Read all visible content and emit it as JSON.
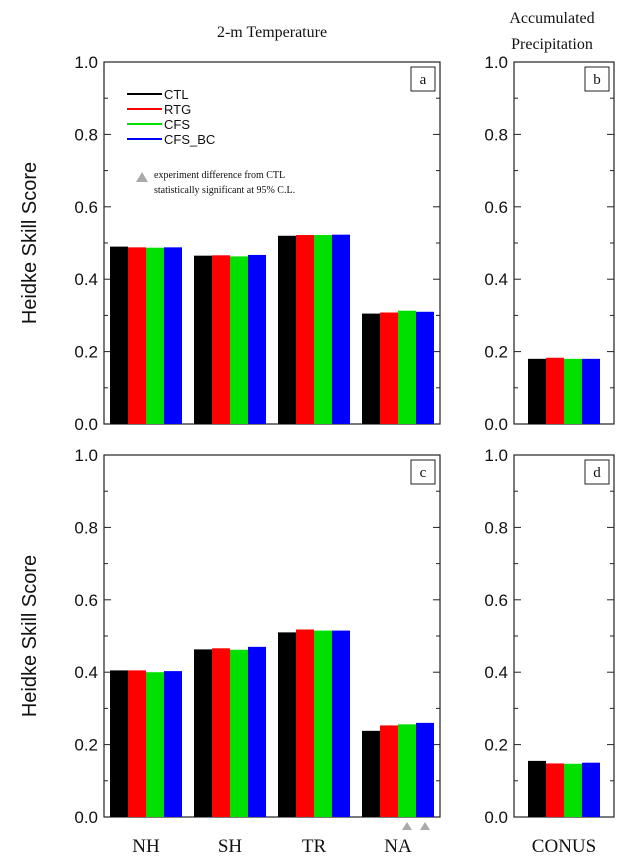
{
  "figure": {
    "col_title_left": "2-m Temperature",
    "col_title_right_line1": "Accumulated",
    "col_title_right_line2": "Precipitation",
    "legend": {
      "entries": [
        {
          "name": "CTL",
          "color": "#000000"
        },
        {
          "name": "RTG",
          "color": "#ff0000"
        },
        {
          "name": "CFS",
          "color": "#00e000"
        },
        {
          "name": "CFS_BC",
          "color": "#0000ff"
        }
      ],
      "note_line1": "experiment difference from CTL",
      "note_line2": "statistically significant at 95% C.L.",
      "marker_color": "#aaaaaa"
    }
  },
  "chart_data": [
    {
      "panel": "a",
      "type": "bar",
      "ylabel": "Heidke Skill Score",
      "ylim": [
        0,
        1
      ],
      "yticks": [
        "0.0",
        "0.2",
        "0.4",
        "0.6",
        "0.8",
        "1.0"
      ],
      "categories": [
        "NH",
        "SH",
        "TR",
        "NA"
      ],
      "series": [
        {
          "name": "CTL",
          "values": [
            0.49,
            0.465,
            0.52,
            0.305
          ]
        },
        {
          "name": "RTG",
          "values": [
            0.488,
            0.466,
            0.522,
            0.308
          ]
        },
        {
          "name": "CFS",
          "values": [
            0.487,
            0.463,
            0.522,
            0.313
          ]
        },
        {
          "name": "CFS_BC",
          "values": [
            0.488,
            0.467,
            0.523,
            0.31
          ]
        }
      ],
      "significant": []
    },
    {
      "panel": "b",
      "type": "bar",
      "ylim": [
        0,
        1
      ],
      "yticks": [
        "0.0",
        "0.2",
        "0.4",
        "0.6",
        "0.8",
        "1.0"
      ],
      "categories": [
        "CONUS"
      ],
      "series": [
        {
          "name": "CTL",
          "values": [
            0.18
          ]
        },
        {
          "name": "RTG",
          "values": [
            0.183
          ]
        },
        {
          "name": "CFS",
          "values": [
            0.18
          ]
        },
        {
          "name": "CFS_BC",
          "values": [
            0.18
          ]
        }
      ],
      "significant": []
    },
    {
      "panel": "c",
      "type": "bar",
      "ylabel": "Heidke Skill Score",
      "ylim": [
        0,
        1
      ],
      "yticks": [
        "0.0",
        "0.2",
        "0.4",
        "0.6",
        "0.8",
        "1.0"
      ],
      "categories": [
        "NH",
        "SH",
        "TR",
        "NA"
      ],
      "series": [
        {
          "name": "CTL",
          "values": [
            0.405,
            0.463,
            0.51,
            0.238
          ]
        },
        {
          "name": "RTG",
          "values": [
            0.405,
            0.466,
            0.518,
            0.253
          ]
        },
        {
          "name": "CFS",
          "values": [
            0.4,
            0.462,
            0.515,
            0.256
          ]
        },
        {
          "name": "CFS_BC",
          "values": [
            0.403,
            0.47,
            0.515,
            0.26
          ]
        }
      ],
      "significant": [
        [
          3,
          2
        ],
        [
          3,
          3
        ]
      ]
    },
    {
      "panel": "d",
      "type": "bar",
      "ylim": [
        0,
        1
      ],
      "yticks": [
        "0.0",
        "0.2",
        "0.4",
        "0.6",
        "0.8",
        "1.0"
      ],
      "categories": [
        "CONUS"
      ],
      "series": [
        {
          "name": "CTL",
          "values": [
            0.155
          ]
        },
        {
          "name": "RTG",
          "values": [
            0.148
          ]
        },
        {
          "name": "CFS",
          "values": [
            0.147
          ]
        },
        {
          "name": "CFS_BC",
          "values": [
            0.15
          ]
        }
      ],
      "significant": []
    }
  ]
}
